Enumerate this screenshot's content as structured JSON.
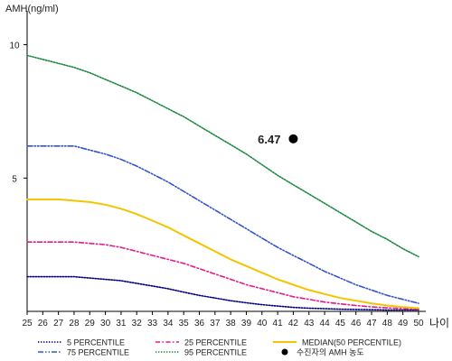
{
  "chart_data": {
    "type": "line",
    "ylabel": "AMH(ng/ml)",
    "xlabel": "나이",
    "x": [
      25,
      26,
      27,
      28,
      29,
      30,
      31,
      32,
      33,
      34,
      35,
      36,
      37,
      38,
      39,
      40,
      41,
      42,
      43,
      44,
      45,
      46,
      47,
      48,
      49,
      50
    ],
    "xlim": [
      25,
      50
    ],
    "ylim": [
      0,
      11
    ],
    "yticks": [
      5,
      10
    ],
    "grid": false,
    "legend_position": "bottom",
    "series": [
      {
        "name": "5 PERCENTILE",
        "color": "#000080",
        "dash": "dotted",
        "values": [
          1.3,
          1.3,
          1.3,
          1.3,
          1.25,
          1.2,
          1.15,
          1.05,
          0.95,
          0.85,
          0.72,
          0.6,
          0.5,
          0.4,
          0.32,
          0.25,
          0.2,
          0.15,
          0.12,
          0.1,
          0.08,
          0.07,
          0.06,
          0.05,
          0.05,
          0.05
        ]
      },
      {
        "name": "25 PERCENTILE",
        "color": "#e6198a",
        "dash": "dashdot",
        "values": [
          2.6,
          2.6,
          2.6,
          2.6,
          2.55,
          2.5,
          2.4,
          2.25,
          2.1,
          1.95,
          1.8,
          1.6,
          1.4,
          1.2,
          1.0,
          0.85,
          0.7,
          0.55,
          0.45,
          0.35,
          0.28,
          0.22,
          0.17,
          0.13,
          0.1,
          0.08
        ]
      },
      {
        "name": "MEDIAN(50 PERCENTILE)",
        "color": "#f5c400",
        "dash": "solid",
        "values": [
          4.2,
          4.2,
          4.2,
          4.15,
          4.1,
          4.0,
          3.85,
          3.65,
          3.4,
          3.15,
          2.85,
          2.55,
          2.25,
          1.95,
          1.7,
          1.45,
          1.2,
          1.0,
          0.8,
          0.65,
          0.5,
          0.4,
          0.3,
          0.22,
          0.16,
          0.12
        ]
      },
      {
        "name": "75 PERCENTILE",
        "color": "#3355cc",
        "dash": "dashdotdot",
        "values": [
          6.2,
          6.2,
          6.2,
          6.2,
          6.05,
          5.9,
          5.7,
          5.45,
          5.15,
          4.85,
          4.5,
          4.15,
          3.8,
          3.45,
          3.1,
          2.75,
          2.4,
          2.1,
          1.8,
          1.5,
          1.25,
          1.0,
          0.8,
          0.6,
          0.45,
          0.3
        ]
      },
      {
        "name": "95 PERCENTILE",
        "color": "#1b8a3c",
        "dash": "dotted",
        "values": [
          9.6,
          9.45,
          9.3,
          9.15,
          8.95,
          8.7,
          8.45,
          8.2,
          7.9,
          7.6,
          7.3,
          6.95,
          6.6,
          6.25,
          5.9,
          5.5,
          5.1,
          4.75,
          4.4,
          4.05,
          3.7,
          3.35,
          3.0,
          2.7,
          2.35,
          2.05
        ]
      }
    ],
    "marker": {
      "name": "수진자의 AMH 농도",
      "x": 42,
      "y": 6.47,
      "label": "6.47",
      "color": "#000000"
    }
  }
}
